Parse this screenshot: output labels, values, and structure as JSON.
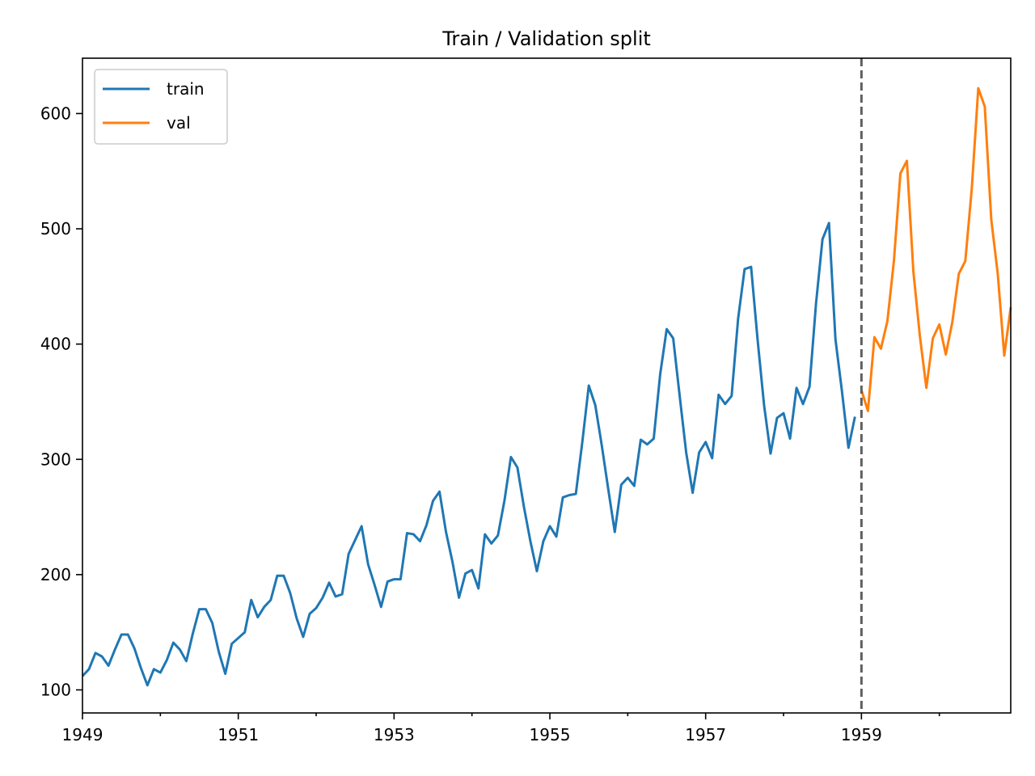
{
  "chart_data": {
    "type": "line",
    "title": "Train / Validation split",
    "xlabel": "",
    "ylabel": "",
    "x_unit": "month",
    "xlim": [
      "1949-01",
      "1960-12"
    ],
    "ylim": [
      80,
      648
    ],
    "x_ticks": [
      "1949",
      "1951",
      "1953",
      "1955",
      "1957",
      "1959"
    ],
    "y_ticks": [
      "100",
      "200",
      "300",
      "400",
      "500",
      "600"
    ],
    "legend_position": "top-left",
    "grid": false,
    "split_marker": {
      "x": "1959-01",
      "style": "dashed",
      "color": "#606060"
    },
    "series": [
      {
        "name": "train",
        "color": "#1f77b4",
        "start": "1949-01",
        "values": [
          112,
          118,
          132,
          129,
          121,
          135,
          148,
          148,
          136,
          119,
          104,
          118,
          115,
          126,
          141,
          135,
          125,
          149,
          170,
          170,
          158,
          133,
          114,
          140,
          145,
          150,
          178,
          163,
          172,
          178,
          199,
          199,
          184,
          162,
          146,
          166,
          171,
          180,
          193,
          181,
          183,
          218,
          230,
          242,
          209,
          191,
          172,
          194,
          196,
          196,
          236,
          235,
          229,
          243,
          264,
          272,
          237,
          211,
          180,
          201,
          204,
          188,
          235,
          227,
          234,
          264,
          302,
          293,
          259,
          229,
          203,
          229,
          242,
          233,
          267,
          269,
          270,
          315,
          364,
          347,
          312,
          274,
          237,
          278,
          284,
          277,
          317,
          313,
          318,
          374,
          413,
          405,
          355,
          306,
          271,
          306,
          315,
          301,
          356,
          348,
          355,
          422,
          465,
          467,
          404,
          347,
          305,
          336,
          340,
          318,
          362,
          348,
          363,
          435,
          491,
          505,
          404,
          359,
          310,
          337
        ]
      },
      {
        "name": "val",
        "color": "#ff7f0e",
        "start": "1959-01",
        "values": [
          360,
          342,
          406,
          396,
          420,
          472,
          548,
          559,
          463,
          407,
          362,
          405,
          417,
          391,
          419,
          461,
          472,
          535,
          622,
          606,
          508,
          461,
          390,
          432
        ]
      }
    ]
  }
}
